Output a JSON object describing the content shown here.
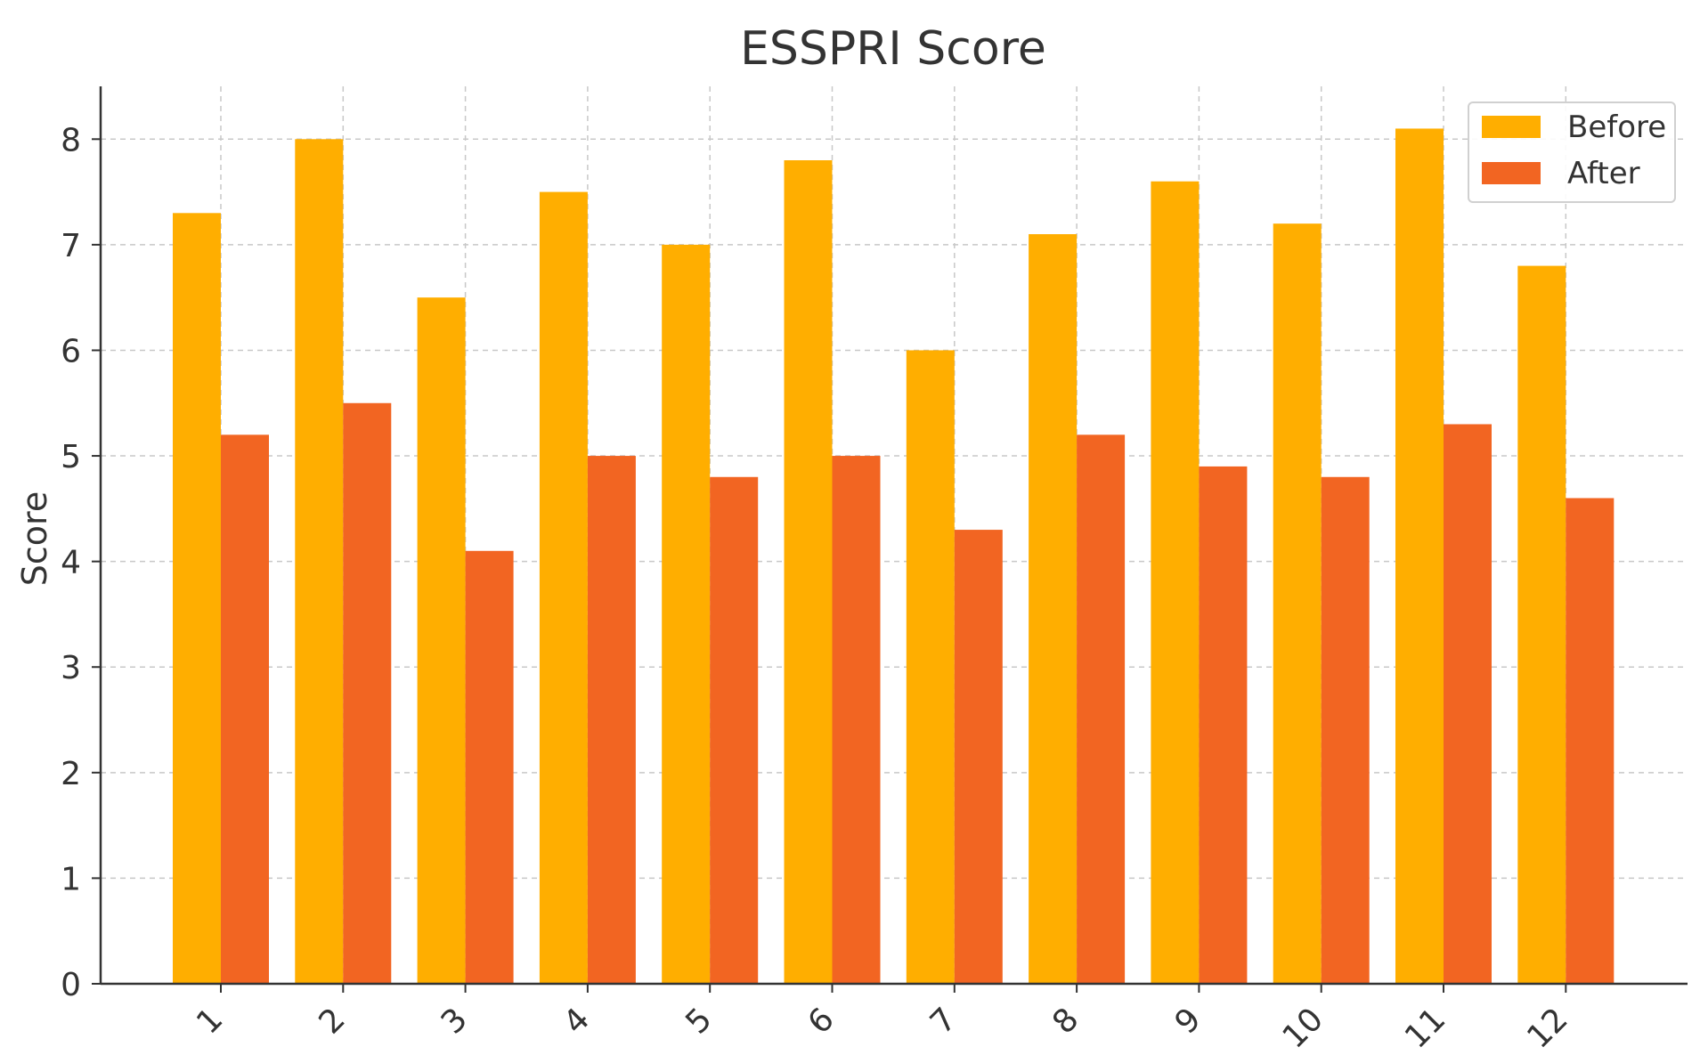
{
  "chart_data": {
    "type": "bar",
    "title": "ESSPRI Score",
    "xlabel": "",
    "ylabel": "Score",
    "categories": [
      "1",
      "2",
      "3",
      "4",
      "5",
      "6",
      "7",
      "8",
      "9",
      "10",
      "11",
      "12"
    ],
    "series": [
      {
        "name": "Before",
        "color": "#FFAE00",
        "values": [
          7.3,
          8.0,
          6.5,
          7.5,
          7.0,
          7.8,
          6.0,
          7.1,
          7.6,
          7.2,
          8.1,
          6.8
        ]
      },
      {
        "name": "After",
        "color": "#F26522",
        "values": [
          5.2,
          5.5,
          4.1,
          5.0,
          4.8,
          5.0,
          4.3,
          5.2,
          4.9,
          4.8,
          5.3,
          4.6
        ]
      }
    ],
    "ylim": [
      0,
      8.5
    ],
    "yticks": [
      0,
      1,
      2,
      3,
      4,
      5,
      6,
      7,
      8
    ],
    "grid": true,
    "legend_position": "top-right"
  }
}
